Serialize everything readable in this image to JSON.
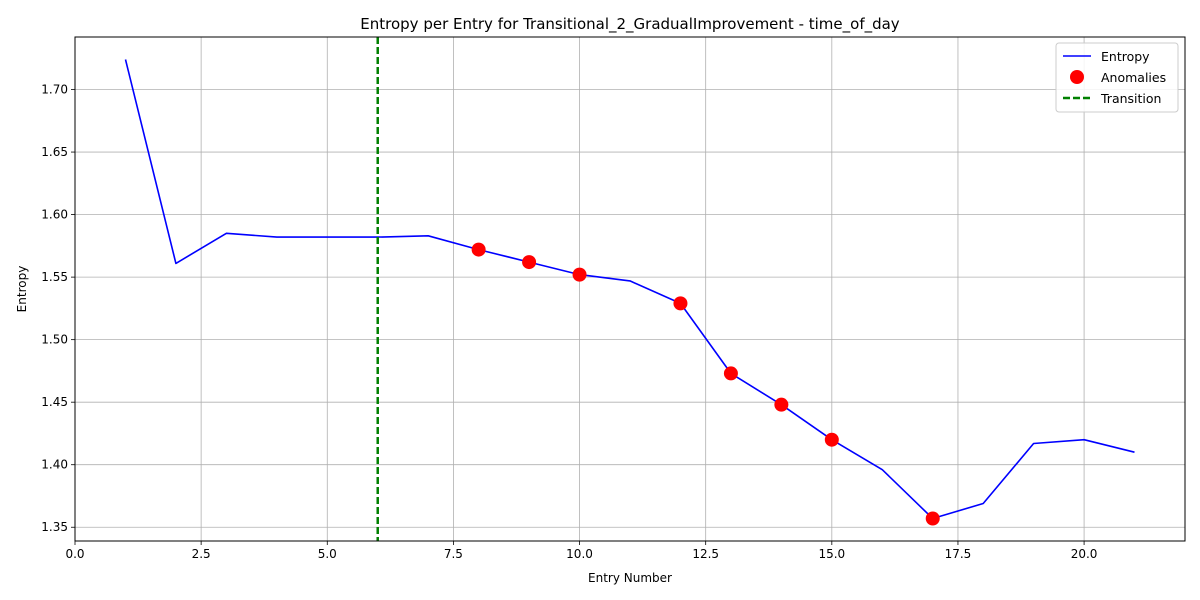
{
  "chart_data": {
    "type": "line",
    "title": "Entropy per Entry for Transitional_2_GradualImprovement - time_of_day",
    "xlabel": "Entry Number",
    "ylabel": "Entropy",
    "xlim": [
      0,
      22
    ],
    "ylim": [
      1.339,
      1.742
    ],
    "x_ticks": [
      0.0,
      2.5,
      5.0,
      7.5,
      10.0,
      12.5,
      15.0,
      17.5,
      20.0
    ],
    "x_tick_labels": [
      "0.0",
      "2.5",
      "5.0",
      "7.5",
      "10.0",
      "12.5",
      "15.0",
      "17.5",
      "20.0"
    ],
    "y_ticks": [
      1.35,
      1.4,
      1.45,
      1.5,
      1.55,
      1.6,
      1.65,
      1.7
    ],
    "y_tick_labels": [
      "1.35",
      "1.40",
      "1.45",
      "1.50",
      "1.55",
      "1.60",
      "1.65",
      "1.70"
    ],
    "grid": true,
    "legend_position": "top-right",
    "series": [
      {
        "name": "Entropy",
        "kind": "line",
        "color": "#0000ff",
        "x": [
          1,
          2,
          3,
          4,
          5,
          6,
          7,
          8,
          9,
          10,
          11,
          12,
          13,
          14,
          15,
          16,
          17,
          18,
          19,
          20,
          21
        ],
        "y": [
          1.724,
          1.561,
          1.585,
          1.582,
          1.582,
          1.582,
          1.583,
          1.572,
          1.562,
          1.552,
          1.547,
          1.529,
          1.473,
          1.448,
          1.42,
          1.396,
          1.357,
          1.369,
          1.417,
          1.42,
          1.41
        ]
      },
      {
        "name": "Anomalies",
        "kind": "scatter",
        "color": "#ff0000",
        "x": [
          8,
          9,
          10,
          12,
          13,
          14,
          15,
          17
        ],
        "y": [
          1.572,
          1.562,
          1.552,
          1.529,
          1.473,
          1.448,
          1.42,
          1.357
        ]
      },
      {
        "name": "Transition",
        "kind": "vline",
        "color": "#008000",
        "x": 6
      }
    ]
  }
}
